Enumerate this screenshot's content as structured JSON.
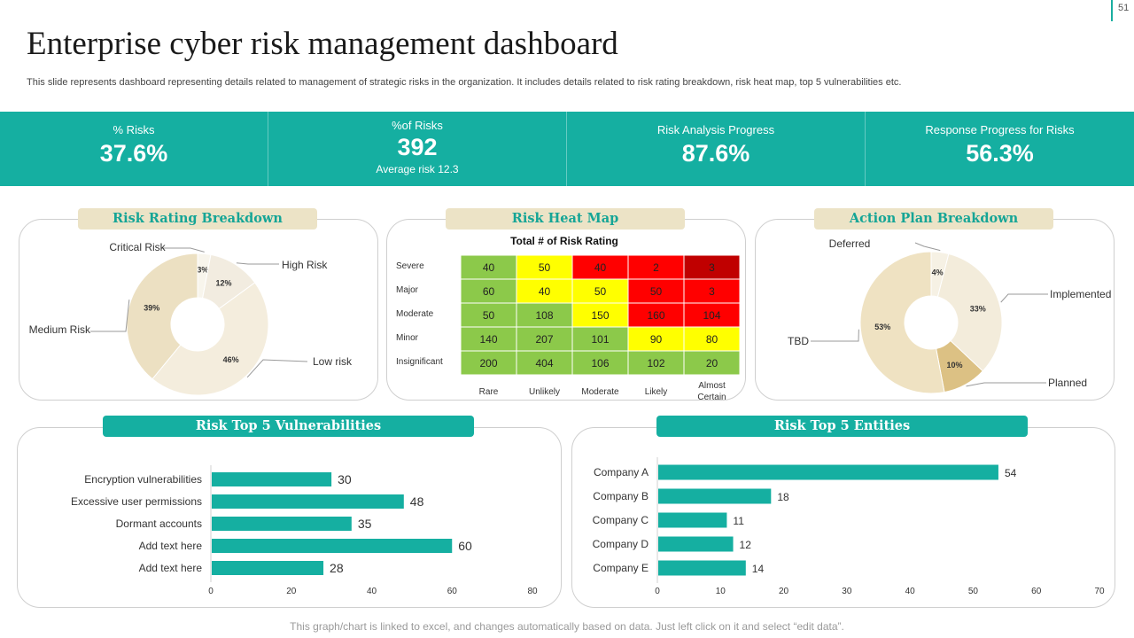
{
  "page": {
    "title": "Enterprise cyber risk management dashboard",
    "subtitle": "This slide represents dashboard representing details related to management of strategic risks in the organization. It includes details related to risk rating breakdown, risk heat map, top 5 vulnerabilities etc.",
    "slide_number": "51",
    "footer": "This graph/chart is linked to excel, and changes automatically based on data.  Just left click on it and select “edit data”."
  },
  "kpis": [
    {
      "label": "% Risks",
      "value": "37.6%",
      "sub": ""
    },
    {
      "label": "%of Risks",
      "value": "392",
      "sub": "Average  risk 12.3"
    },
    {
      "label": "Risk Analysis Progress",
      "value": "87.6%",
      "sub": ""
    },
    {
      "label": "Response Progress for Risks",
      "value": "56.3%",
      "sub": ""
    }
  ],
  "panels": {
    "risk_rating": "Risk Rating Breakdown",
    "heat_map": "Risk Heat Map",
    "action_plan": "Action Plan Breakdown",
    "vulnerabilities": "Risk  Top 5 Vulnerabilities",
    "entities": "Risk  Top 5 Entities"
  },
  "colors": {
    "teal": "#15afa1",
    "beige": "#ece3c6",
    "heat_green": "#8cc94a",
    "heat_yellow": "#ffff00",
    "heat_red": "#ff0000",
    "heat_darkred": "#c00000"
  },
  "chart_data": [
    {
      "id": "risk_rating",
      "type": "pie",
      "title": "Risk Rating Breakdown",
      "labels": [
        "Critical Risk",
        "High Risk",
        "Low risk",
        "Medium Risk"
      ],
      "values": [
        3,
        12,
        46,
        39
      ],
      "value_labels": [
        "3%",
        "12%",
        "46%",
        "39%"
      ],
      "colors": [
        "#f8f5ec",
        "#f2ece0",
        "#f4eddd",
        "#ece0c2"
      ],
      "donut": true
    },
    {
      "id": "heat_map",
      "type": "heatmap",
      "title": "Total # of Risk Rating",
      "rows": [
        "Severe",
        "Major",
        "Moderate",
        "Minor",
        "Insignificant"
      ],
      "columns": [
        "Rare",
        "Unlikely",
        "Moderate",
        "Likely",
        "Almost Certain"
      ],
      "values": [
        [
          40,
          50,
          40,
          2,
          3
        ],
        [
          60,
          40,
          50,
          50,
          3
        ],
        [
          50,
          108,
          150,
          160,
          104
        ],
        [
          140,
          207,
          101,
          90,
          80
        ],
        [
          200,
          404,
          106,
          102,
          20
        ]
      ],
      "levels": [
        [
          "g",
          "y",
          "r",
          "r",
          "d"
        ],
        [
          "g",
          "y",
          "y",
          "r",
          "r"
        ],
        [
          "g",
          "g",
          "y",
          "r",
          "r"
        ],
        [
          "g",
          "g",
          "g",
          "y",
          "y"
        ],
        [
          "g",
          "g",
          "g",
          "g",
          "g"
        ]
      ]
    },
    {
      "id": "action_plan",
      "type": "pie",
      "title": "Action Plan Breakdown",
      "labels": [
        "Deferred",
        "Implemented",
        "Planned",
        "TBD"
      ],
      "values": [
        4,
        33,
        10,
        53
      ],
      "value_labels": [
        "4%",
        "33%",
        "10%",
        "53%"
      ],
      "colors": [
        "#f6f1e4",
        "#f3ecdb",
        "#dcc184",
        "#efe2c2"
      ],
      "donut": true
    },
    {
      "id": "vulnerabilities",
      "type": "bar",
      "orientation": "horizontal",
      "title": "Risk  Top 5 Vulnerabilities",
      "categories": [
        "Encryption vulnerabilities",
        "Excessive user permissions",
        "Dormant accounts",
        "Add text here",
        "Add text here"
      ],
      "values": [
        30,
        48,
        35,
        60,
        28
      ],
      "xlim": [
        0,
        80
      ],
      "ticks": [
        0,
        20,
        40,
        60,
        80
      ]
    },
    {
      "id": "entities",
      "type": "bar",
      "orientation": "horizontal",
      "title": "Risk  Top 5 Entities",
      "categories": [
        "Company A",
        "Company B",
        "Company C",
        "Company D",
        "Company E"
      ],
      "values": [
        54,
        18,
        11,
        12,
        14
      ],
      "xlim": [
        0,
        70
      ],
      "ticks": [
        0,
        10,
        20,
        30,
        40,
        50,
        60,
        70
      ]
    }
  ]
}
